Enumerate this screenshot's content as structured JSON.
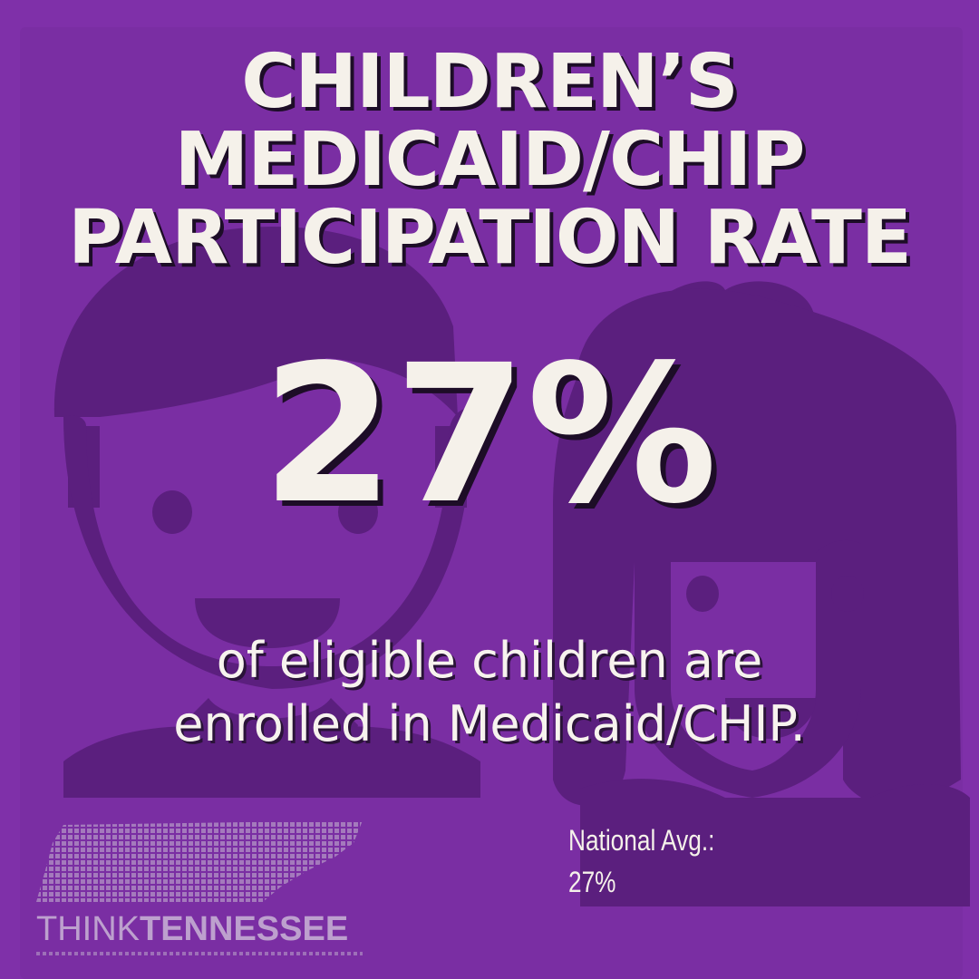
{
  "title": {
    "lines": [
      "CHILDREN’S",
      "MEDICAID/CHIP",
      "PARTICIPATION RATE"
    ]
  },
  "stat": {
    "value": "27%"
  },
  "subtitle": {
    "lines": [
      "of eligible children are",
      "enrolled in Medicaid/CHIP."
    ]
  },
  "national": {
    "label": "National Avg.:",
    "value": "27%"
  },
  "logo": {
    "think": "THINK",
    "tennessee": "TENNESSEE"
  },
  "colors": {
    "background": "#7f30a9",
    "illustration": "#5b1f7e",
    "text": "#f5f1ea",
    "shadow": "#1d0d27"
  },
  "icons": [
    "boy-illustration",
    "girl-illustration",
    "tennessee-map-logo"
  ]
}
